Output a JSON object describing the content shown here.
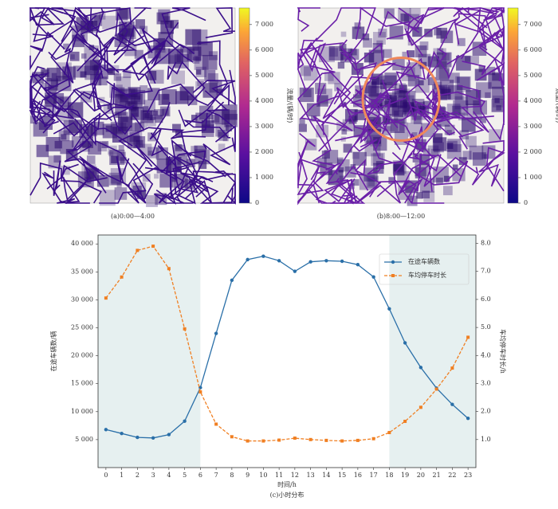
{
  "chart_data": [
    {
      "type": "heatmap",
      "caption": "(a)0:00—4:00",
      "colorbar_label": "流量/(辆/时)",
      "clim": [
        0,
        7650
      ],
      "cticks": [
        {
          "value": 0,
          "label": "0"
        },
        {
          "value": 1000,
          "label": "1 000"
        },
        {
          "value": 2000,
          "label": "2 000"
        },
        {
          "value": 3000,
          "label": "3 000"
        },
        {
          "value": 4000,
          "label": "4 000"
        },
        {
          "value": 5000,
          "label": "5 000"
        },
        {
          "value": 6000,
          "label": "6 000"
        },
        {
          "value": 7000,
          "label": "7 000"
        }
      ]
    },
    {
      "type": "heatmap",
      "caption": "(b)8:00—12:00",
      "colorbar_label": "流量/(辆/时)",
      "clim": [
        0,
        7650
      ],
      "cticks": [
        {
          "value": 0,
          "label": "0"
        },
        {
          "value": 1000,
          "label": "1 000"
        },
        {
          "value": 2000,
          "label": "2 000"
        },
        {
          "value": 3000,
          "label": "3 000"
        },
        {
          "value": 4000,
          "label": "4 000"
        },
        {
          "value": 5000,
          "label": "5 000"
        },
        {
          "value": 6000,
          "label": "6 000"
        },
        {
          "value": 7000,
          "label": "7 000"
        }
      ]
    },
    {
      "type": "line",
      "caption": "(c)小时分布",
      "x_label": "时间/h",
      "y_label": "在途车辆数/辆",
      "y2_label": "车均停车时长/h",
      "x": [
        0,
        1,
        2,
        3,
        4,
        5,
        6,
        7,
        8,
        9,
        10,
        11,
        12,
        13,
        14,
        15,
        16,
        17,
        18,
        19,
        20,
        21,
        22,
        23
      ],
      "xlim": [
        -0.5,
        23.5
      ],
      "xticks": [
        0,
        1,
        2,
        3,
        4,
        5,
        6,
        7,
        8,
        9,
        10,
        11,
        12,
        13,
        14,
        15,
        16,
        17,
        18,
        19,
        20,
        21,
        22,
        23
      ],
      "ylim": [
        0,
        41600
      ],
      "yticks": [
        {
          "value": 5000,
          "label": "5 000"
        },
        {
          "value": 10000,
          "label": "10 000"
        },
        {
          "value": 15000,
          "label": "15 000"
        },
        {
          "value": 20000,
          "label": "20 000"
        },
        {
          "value": 25000,
          "label": "25 000"
        },
        {
          "value": 30000,
          "label": "30 000"
        },
        {
          "value": 35000,
          "label": "35 000"
        },
        {
          "value": 40000,
          "label": "40 000"
        }
      ],
      "y2lim": [
        0,
        8.3
      ],
      "y2ticks": [
        {
          "value": 1,
          "label": "1.0"
        },
        {
          "value": 2,
          "label": "2.0"
        },
        {
          "value": 3,
          "label": "3.0"
        },
        {
          "value": 4,
          "label": "4.0"
        },
        {
          "value": 5,
          "label": "5.0"
        },
        {
          "value": 6,
          "label": "6.0"
        },
        {
          "value": 7,
          "label": "7.0"
        },
        {
          "value": 8,
          "label": "8.0"
        }
      ],
      "shaded_spans": [
        [
          -0.5,
          6
        ],
        [
          18,
          23.5
        ]
      ],
      "shade_color": "#e6f0f0",
      "legend": "upper right",
      "series": [
        {
          "name": "在途车辆数",
          "color": "#2a6fa8",
          "values": [
            6800,
            6100,
            5400,
            5300,
            5900,
            8300,
            14300,
            24000,
            33500,
            37200,
            37800,
            37000,
            35100,
            36800,
            37000,
            36900,
            36300,
            34100,
            28400,
            22300,
            17900,
            14200,
            11300,
            8800
          ]
        },
        {
          "name": "车均停车时长",
          "color": "#f07f22",
          "axis": "y2",
          "dashed": true,
          "values": [
            6.05,
            6.8,
            7.75,
            7.9,
            7.1,
            4.95,
            2.7,
            1.55,
            1.1,
            0.95,
            0.95,
            0.98,
            1.05,
            1.0,
            0.97,
            0.95,
            0.97,
            1.03,
            1.25,
            1.65,
            2.15,
            2.8,
            3.55,
            4.65
          ]
        }
      ]
    }
  ]
}
